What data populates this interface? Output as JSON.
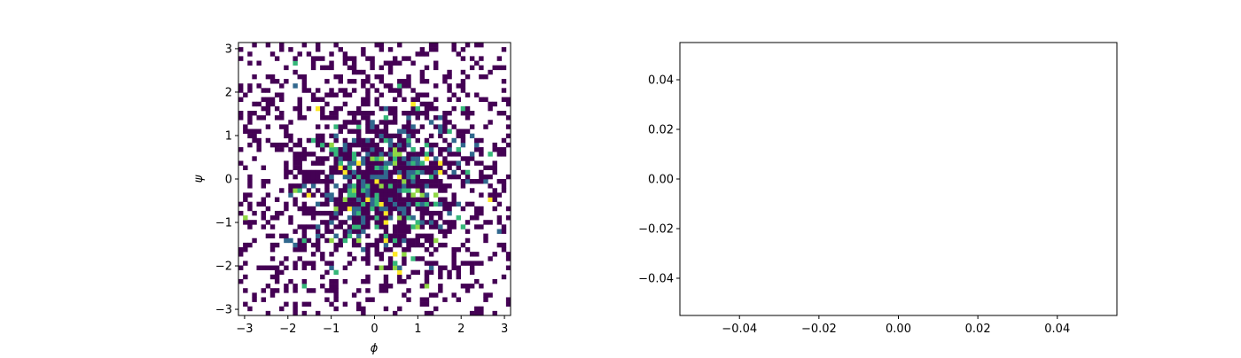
{
  "chart_data": [
    {
      "type": "heatmap",
      "title": "",
      "xlabel": "ϕ",
      "ylabel": "ψ",
      "xlim": [
        -3.14159,
        3.14159
      ],
      "ylim": [
        -3.14159,
        3.14159
      ],
      "bins": 60,
      "colormap": "viridis",
      "empty_color": "#ffffff",
      "xticks": [
        -3,
        -2,
        -1,
        0,
        1,
        2,
        3
      ],
      "xtick_labels": [
        "−3",
        "−2",
        "−1",
        "0",
        "1",
        "2",
        "3"
      ],
      "yticks": [
        -3,
        -2,
        -1,
        0,
        1,
        2,
        3
      ],
      "ytick_labels": [
        "−3",
        "−2",
        "−1",
        "0",
        "1",
        "2",
        "3"
      ],
      "grid": false,
      "distribution": {
        "peak": [
          0.2,
          -0.1
        ],
        "spread": [
          1.25,
          1.1
        ],
        "max_count": 5
      },
      "palette": [
        "#440154",
        "#31688e",
        "#35b779",
        "#8fd744",
        "#fde725"
      ]
    },
    {
      "type": "scatter",
      "title": "",
      "xlabel": "",
      "ylabel": "",
      "x": [],
      "y": [],
      "xlim": [
        -0.055,
        0.055
      ],
      "ylim": [
        -0.055,
        0.055
      ],
      "xticks": [
        -0.04,
        -0.02,
        0.0,
        0.02,
        0.04
      ],
      "xtick_labels": [
        "−0.04",
        "−0.02",
        "0.00",
        "0.02",
        "0.04"
      ],
      "yticks": [
        -0.04,
        -0.02,
        0.0,
        0.02,
        0.04
      ],
      "ytick_labels": [
        "−0.04",
        "−0.02",
        "0.00",
        "0.02",
        "0.04"
      ],
      "grid": false
    }
  ]
}
